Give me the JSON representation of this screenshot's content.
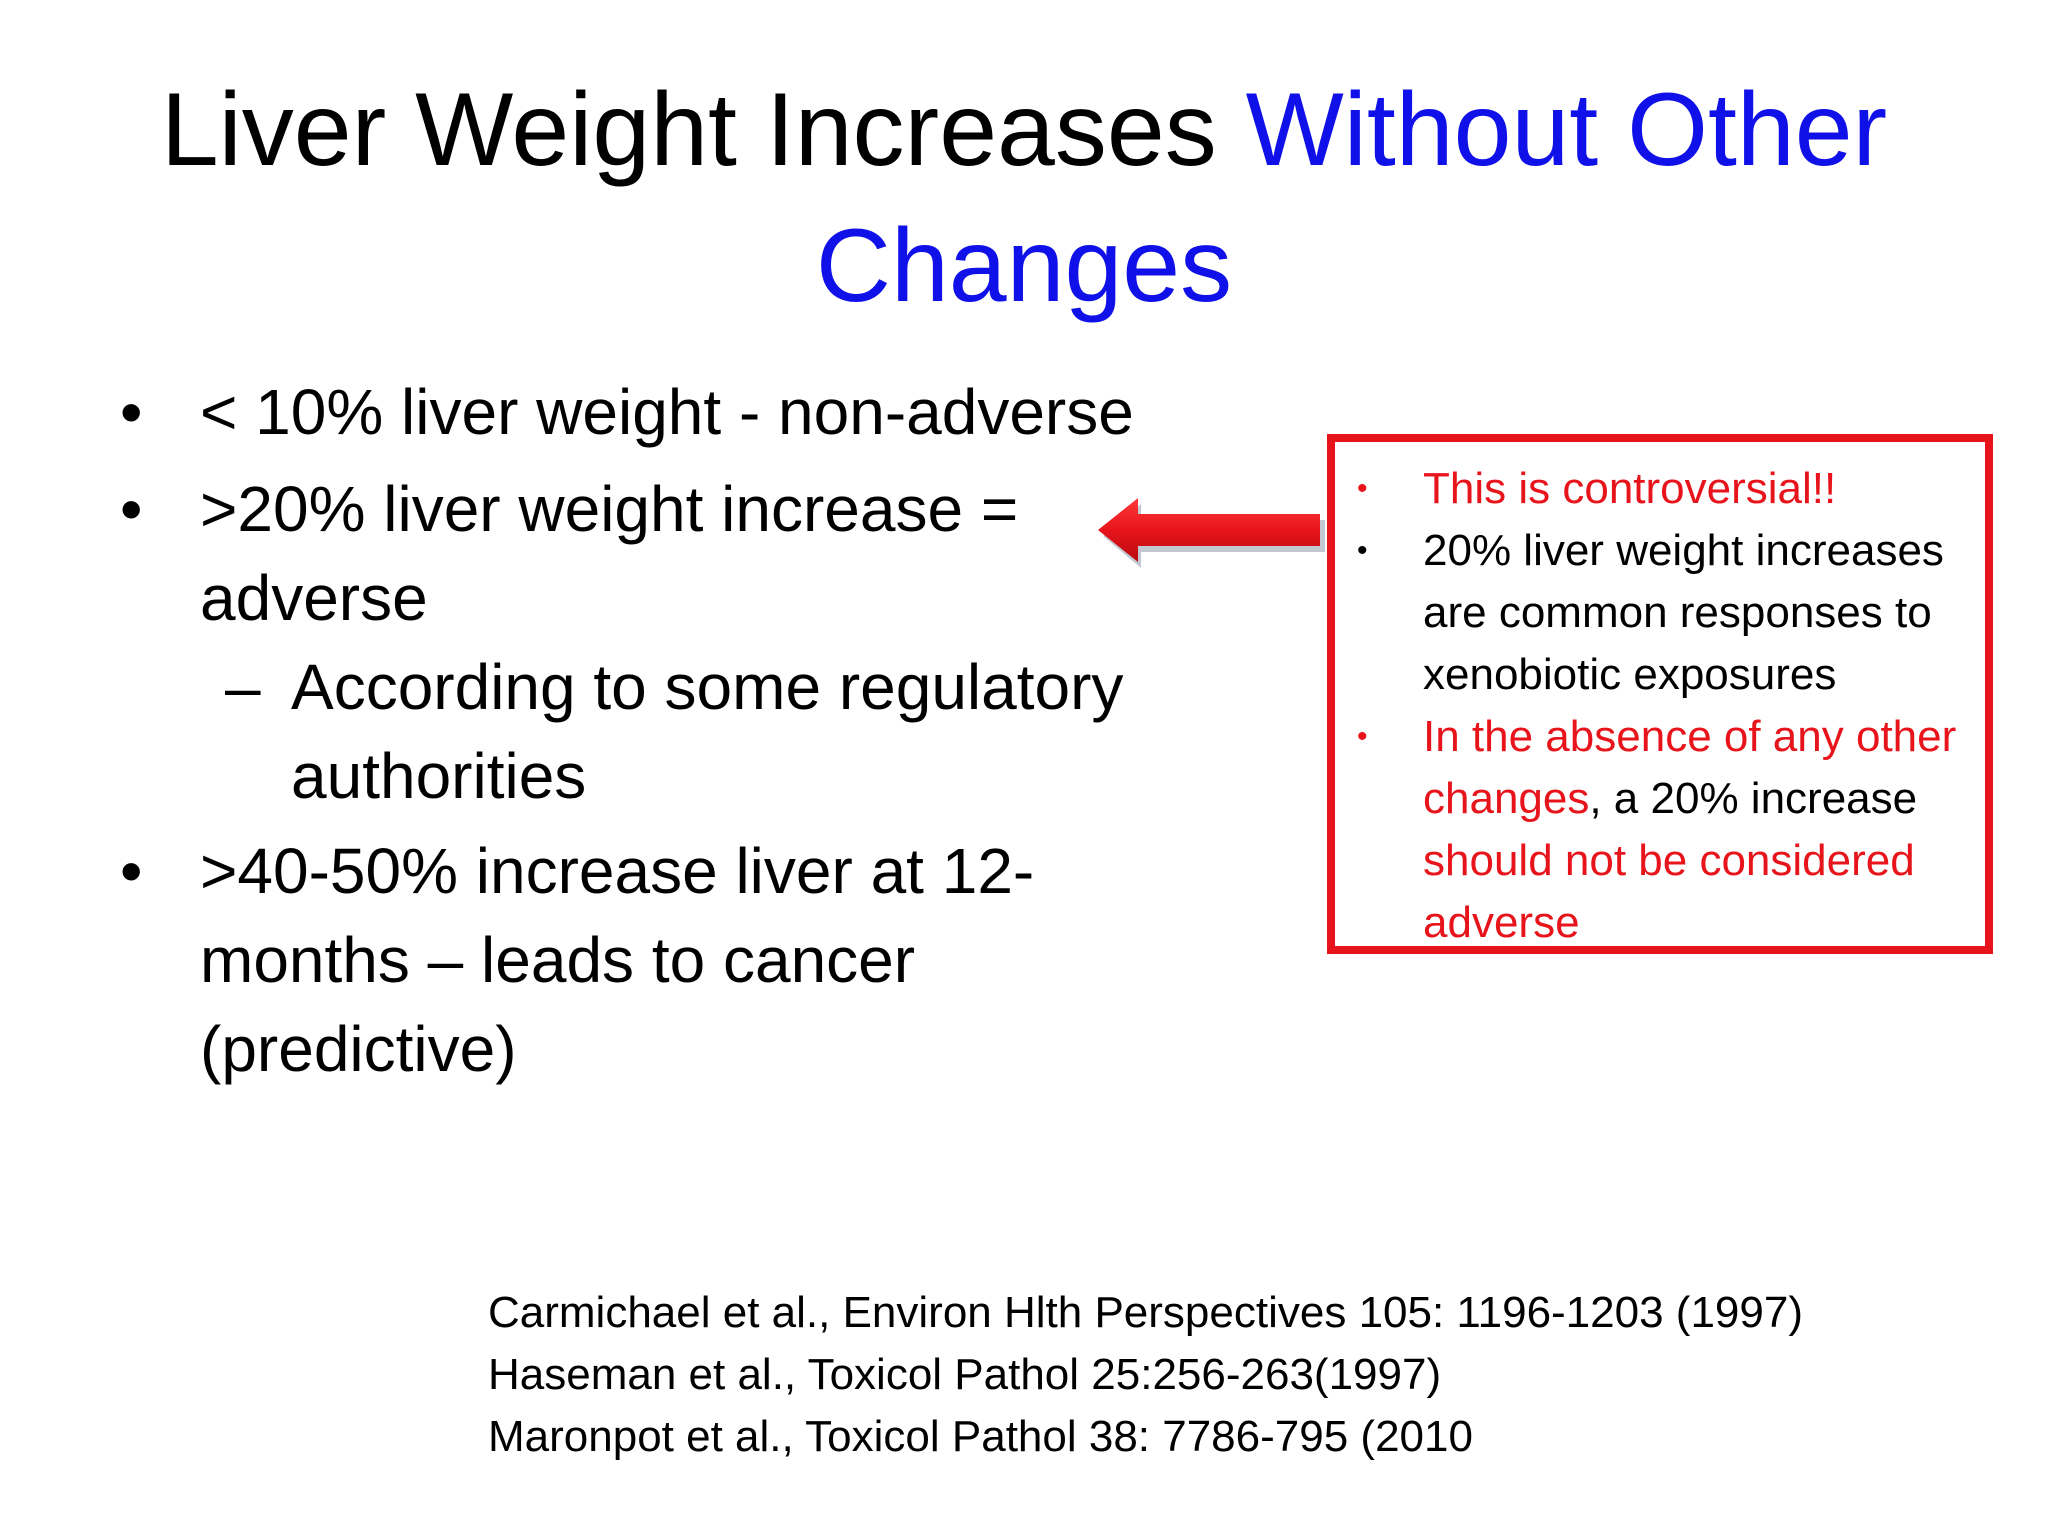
{
  "title": {
    "part1": "Liver Weight Increases ",
    "part2": "Without Other",
    "part3": "Changes"
  },
  "bullets": [
    {
      "marker": "•",
      "text": "< 10% liver weight  - non-adverse"
    },
    {
      "marker": "•",
      "text": ">20% liver weight increase = adverse"
    },
    {
      "marker": "–",
      "text": "According to some regulatory authorities"
    },
    {
      "marker": "•",
      "text": ">40-50% increase liver at 12-months – leads to cancer (predictive)"
    }
  ],
  "callout": {
    "item1": {
      "marker": "•",
      "text": "This is controversial!!"
    },
    "item2": {
      "marker": "•",
      "text": "20%  liver weight increases are common responses to xenobiotic exposures"
    },
    "item3": {
      "marker": "•",
      "seg1": "In the absence of any other changes",
      "seg2": ", a 20% increase ",
      "seg3": "should not be considered adverse"
    }
  },
  "references": [
    "Carmichael et al., Environ Hlth Perspectives 105: 1196-1203 (1997)",
    "Haseman et al., Toxicol Pathol 25:256-263(1997)",
    "Maronpot et al., Toxicol Pathol 38: 7786-795 (2010"
  ],
  "colors": {
    "title_highlight": "#1010e8",
    "accent_red": "#e8141b",
    "text": "#000000",
    "background": "#ffffff"
  },
  "icons": {
    "arrow": "left-arrow-icon"
  }
}
